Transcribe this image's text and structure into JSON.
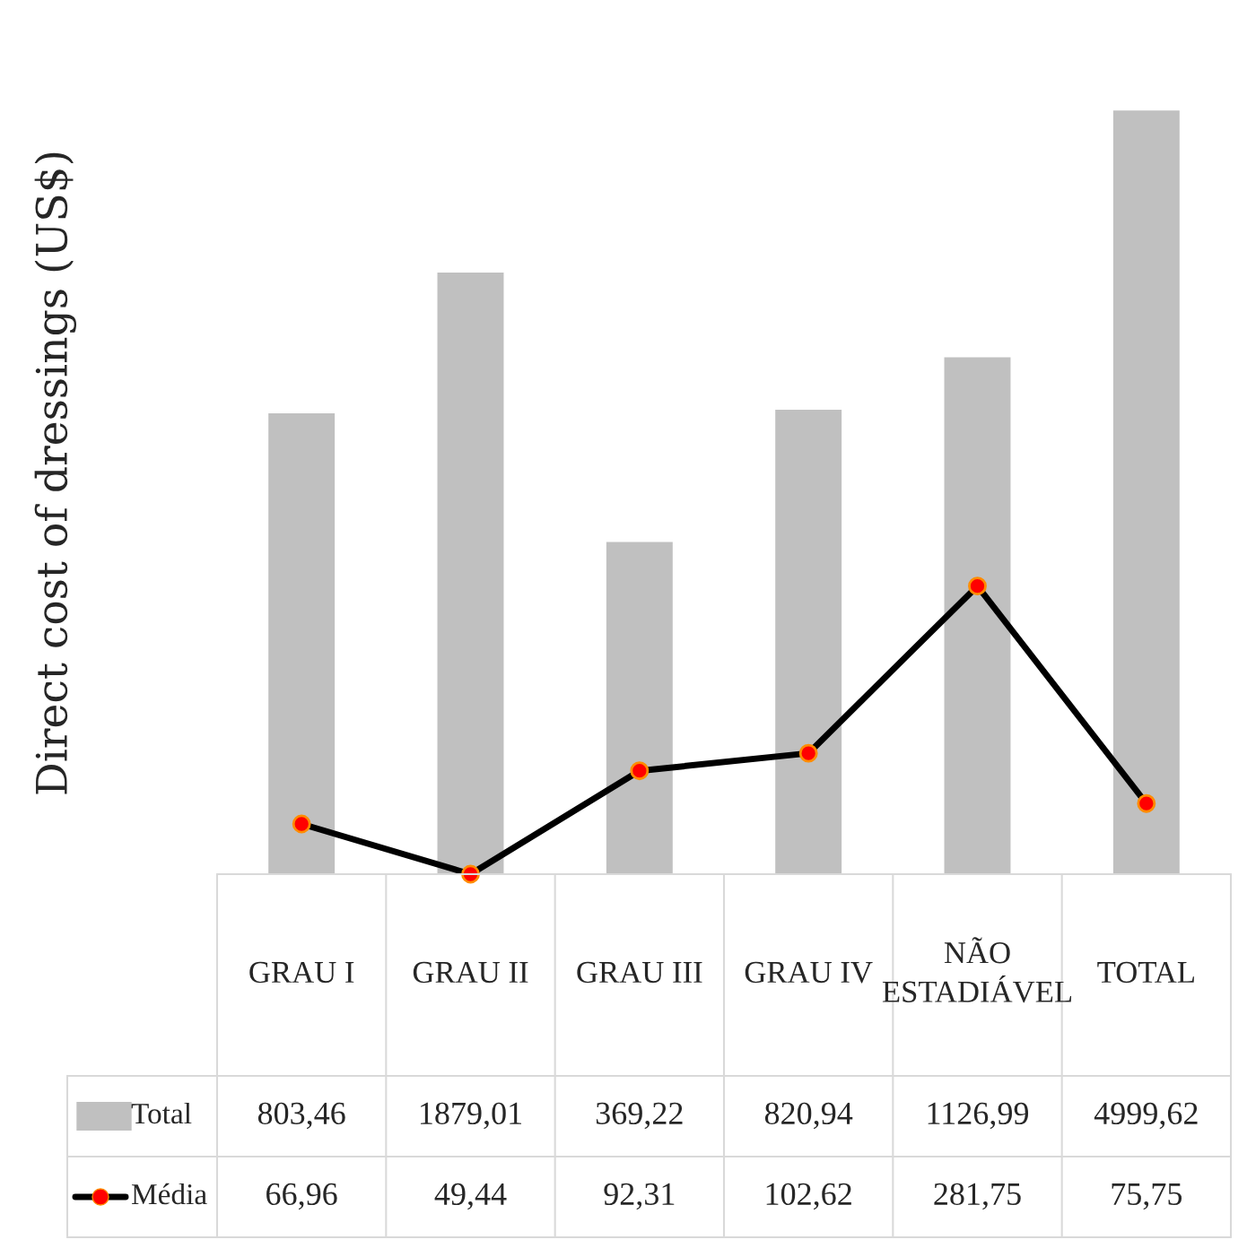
{
  "chart_data": {
    "type": "bar",
    "ylabel": "Direct cost of dressings (US$)",
    "categories": [
      "GRAU I",
      "GRAU II",
      "GRAU III",
      "GRAU IV",
      "NÃO ESTADIÁVEL",
      "TOTAL"
    ],
    "series": [
      {
        "name": "Total",
        "color": "#c0c0c0",
        "values": [
          803.46,
          1879.01,
          369.22,
          820.94,
          1126.99,
          4999.62
        ],
        "value_labels": [
          "803,46",
          "1879,01",
          "369,22",
          "820,94",
          "1126,99",
          "4999,62"
        ]
      },
      {
        "name": "Média",
        "type": "line",
        "color": "#000000",
        "marker": "circle",
        "values": [
          66.96,
          49.44,
          92.31,
          102.62,
          281.75,
          75.75
        ],
        "value_labels": [
          "66,96",
          "49,44",
          "92,31",
          "102,62",
          "281,75",
          "75,75"
        ]
      }
    ],
    "log": "y",
    "tick_labels": "x",
    "legend": "bottom"
  }
}
